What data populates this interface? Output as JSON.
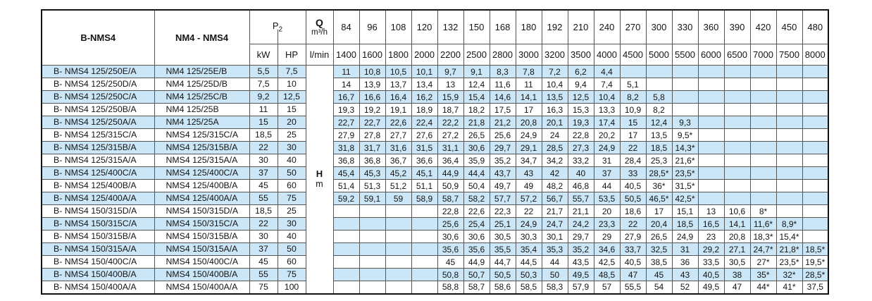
{
  "table": {
    "header": {
      "col_model_b": "B-NMS4",
      "col_model_n": "NM4 - NMS4",
      "p2_label": "P",
      "p2_sub": "2",
      "kw_label": "kW",
      "hp_label": "HP",
      "q_label": "Q",
      "q_unit": "m³/h",
      "lmin_label": "l/min",
      "flows_m3h": [
        "84",
        "96",
        "108",
        "120",
        "132",
        "150",
        "168",
        "180",
        "192",
        "210",
        "240",
        "270",
        "300",
        "330",
        "360",
        "390",
        "420",
        "450",
        "480"
      ],
      "flows_lmin": [
        "1400",
        "1600",
        "1800",
        "2000",
        "2200",
        "2500",
        "2800",
        "3000",
        "3200",
        "3500",
        "4000",
        "4500",
        "5000",
        "5500",
        "6000",
        "6500",
        "7000",
        "7500",
        "8000"
      ]
    },
    "head_unit": {
      "h": "H",
      "m": "m"
    },
    "rows": [
      {
        "b": "B- NMS4 125/250E/A",
        "n": "NM4 125/25E/B",
        "kw": "5,5",
        "hp": "7,5",
        "v": [
          "11",
          "10,8",
          "10,5",
          "10,1",
          "9,7",
          "9,1",
          "8,3",
          "7,8",
          "7,2",
          "6,2",
          "4,4",
          "",
          "",
          "",
          "",
          "",
          "",
          "",
          ""
        ]
      },
      {
        "b": "B- NMS4 125/250D/A",
        "n": "NM4 125/25D/B",
        "kw": "7,5",
        "hp": "10",
        "v": [
          "14",
          "13,9",
          "13,7",
          "13,4",
          "13",
          "12,4",
          "11,6",
          "11",
          "10,4",
          "9,4",
          "7,4",
          "5,1",
          "",
          "",
          "",
          "",
          "",
          "",
          ""
        ]
      },
      {
        "b": "B- NMS4 125/250C/A",
        "n": "NM4 125/25C/B",
        "kw": "9,2",
        "hp": "12,5",
        "v": [
          "16,7",
          "16,6",
          "16,4",
          "16,2",
          "15,9",
          "15,4",
          "14,6",
          "14,1",
          "13,5",
          "12,5",
          "10,4",
          "8,2",
          "5,8",
          "",
          "",
          "",
          "",
          "",
          ""
        ]
      },
      {
        "b": "B- NMS4 125/250B/A",
        "n": "NM4 125/25B",
        "kw": "11",
        "hp": "15",
        "v": [
          "19,3",
          "19,2",
          "19,1",
          "18,9",
          "18,7",
          "18,2",
          "17,5",
          "17",
          "16,3",
          "15,3",
          "13,3",
          "10,9",
          "8,2",
          "",
          "",
          "",
          "",
          "",
          ""
        ]
      },
      {
        "b": "B- NMS4 125/250A/A",
        "n": "NM4 125/25A",
        "kw": "15",
        "hp": "20",
        "v": [
          "22,7",
          "22,7",
          "22,6",
          "22,4",
          "22,2",
          "21,8",
          "21,2",
          "20,8",
          "20,1",
          "19,3",
          "17,4",
          "15",
          "12,4",
          "9,3",
          "",
          "",
          "",
          "",
          ""
        ]
      },
      {
        "b": "B- NMS4 125/315C/A",
        "n": "NMS4 125/315C/A",
        "kw": "18,5",
        "hp": "25",
        "v": [
          "27,9",
          "27,8",
          "27,7",
          "27,6",
          "27,2",
          "26,5",
          "25,6",
          "24,9",
          "24",
          "22,8",
          "20,2",
          "17",
          "13,5",
          "9,5*",
          "",
          "",
          "",
          "",
          ""
        ]
      },
      {
        "b": "B- NMS4 125/315B/A",
        "n": "NMS4 125/315B/A",
        "kw": "22",
        "hp": "30",
        "v": [
          "31,8",
          "31,7",
          "31,6",
          "31,5",
          "31,1",
          "30,6",
          "29,7",
          "29,1",
          "28,5",
          "27,3",
          "24,9",
          "22",
          "18,5",
          "14,3*",
          "",
          "",
          "",
          "",
          ""
        ]
      },
      {
        "b": "B- NMS4 125/315A/A",
        "n": "NMS4 125/315A/A",
        "kw": "30",
        "hp": "40",
        "v": [
          "36,8",
          "36,8",
          "36,7",
          "36,6",
          "36,4",
          "35,9",
          "35,2",
          "34,7",
          "34,2",
          "33,2",
          "31",
          "28,4",
          "25,3",
          "21,6*",
          "",
          "",
          "",
          "",
          ""
        ]
      },
      {
        "b": "B- NMS4 125/400C/A",
        "n": "NMS4 125/400C/A",
        "kw": "37",
        "hp": "50",
        "v": [
          "45,4",
          "45,3",
          "45,2",
          "45,1",
          "44,9",
          "44,4",
          "43,7",
          "43",
          "42",
          "40",
          "37",
          "33",
          "28,5*",
          "23,5*",
          "",
          "",
          "",
          "",
          ""
        ]
      },
      {
        "b": "B- NMS4 125/400B/A",
        "n": "NMS4 125/400B/A",
        "kw": "45",
        "hp": "60",
        "v": [
          "51,4",
          "51,3",
          "51,2",
          "51,1",
          "50,9",
          "50,4",
          "49,7",
          "49",
          "48,2",
          "46,8",
          "44",
          "40,5",
          "36*",
          "31,5*",
          "",
          "",
          "",
          "",
          ""
        ]
      },
      {
        "b": "B- NMS4 125/400A/A",
        "n": "NMS4 125/400A/A",
        "kw": "55",
        "hp": "75",
        "v": [
          "59,2",
          "59,1",
          "59",
          "58,9",
          "58,7",
          "58,2",
          "57,7",
          "57,2",
          "56,7",
          "55,7",
          "53,5",
          "50,5",
          "46,5*",
          "42,5*",
          "",
          "",
          "",
          "",
          ""
        ]
      },
      {
        "b": "B- NMS4 150/315D/A",
        "n": "NMS4 150/315D/A",
        "kw": "18,5",
        "hp": "25",
        "v": [
          "",
          "",
          "",
          "",
          "22,8",
          "22,6",
          "22,3",
          "22",
          "21,7",
          "21,1",
          "20",
          "18,6",
          "17",
          "15,1",
          "13",
          "10,6",
          "8*",
          "",
          ""
        ]
      },
      {
        "b": "B- NMS4 150/315C/A",
        "n": "NMS4 150/315C/A",
        "kw": "22",
        "hp": "30",
        "v": [
          "",
          "",
          "",
          "",
          "25,6",
          "25,4",
          "25,1",
          "24,9",
          "24,7",
          "24,2",
          "23,3",
          "22",
          "20,4",
          "18,5",
          "16,5",
          "14,1",
          "11,6*",
          "8,9*",
          ""
        ]
      },
      {
        "b": "B- NMS4 150/315B/A",
        "n": "NMS4 150/315B/A",
        "kw": "30",
        "hp": "40",
        "v": [
          "",
          "",
          "",
          "",
          "30,6",
          "30,6",
          "30,5",
          "30,3",
          "30,1",
          "29,7",
          "29",
          "27,9",
          "26,5",
          "24,9",
          "23",
          "20,8",
          "18,3*",
          "15,4*",
          ""
        ]
      },
      {
        "b": "B- NMS4 150/315A/A",
        "n": "NMS4 150/315A/A",
        "kw": "37",
        "hp": "50",
        "v": [
          "",
          "",
          "",
          "",
          "35,6",
          "35,6",
          "35,5",
          "35,4",
          "35,3",
          "35,2",
          "34,6",
          "33,7",
          "32,5",
          "31",
          "29,2",
          "27,1",
          "24,7*",
          "21,8*",
          "18,5*"
        ]
      },
      {
        "b": "B- NMS4 150/400C/A",
        "n": "NMS4 150/400C/A",
        "kw": "45",
        "hp": "60",
        "v": [
          "",
          "",
          "",
          "",
          "45",
          "44,9",
          "44,7",
          "44,5",
          "44",
          "43,5",
          "42,5",
          "40,5",
          "38,5",
          "36",
          "33,5",
          "30,5",
          "27*",
          "23,5*",
          "19,5*"
        ]
      },
      {
        "b": "B- NMS4 150/400B/A",
        "n": "NMS4 150/400B/A",
        "kw": "55",
        "hp": "75",
        "v": [
          "",
          "",
          "",
          "",
          "50,8",
          "50,7",
          "50,5",
          "50,3",
          "50",
          "49,5",
          "48,5",
          "47",
          "45",
          "43",
          "40,5",
          "38",
          "35*",
          "32*",
          "28,5*"
        ]
      },
      {
        "b": "B- NMS4 150/400A/A",
        "n": "NMS4 150/400A/A",
        "kw": "75",
        "hp": "100",
        "v": [
          "",
          "",
          "",
          "",
          "58,8",
          "58,7",
          "58,6",
          "58,5",
          "58,3",
          "57,9",
          "57",
          "55,5",
          "54",
          "52",
          "49,5",
          "47",
          "44*",
          "41*",
          "37,5"
        ]
      }
    ]
  },
  "colors": {
    "stripe_blue": "#cbe6f6",
    "grid_line": "#555555",
    "outer_border": "#111111"
  }
}
